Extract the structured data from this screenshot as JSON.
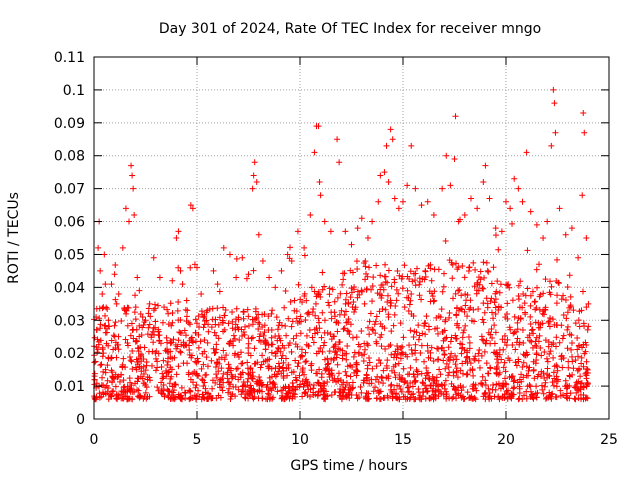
{
  "chart_data": {
    "type": "scatter",
    "title": "Day 301 of 2024, Rate Of TEC Index for receiver mngo",
    "xlabel": "GPS time / hours",
    "ylabel": "ROTI / TECUs",
    "xlim": [
      0,
      25
    ],
    "ylim": [
      0,
      0.11
    ],
    "xticks": [
      0,
      5,
      10,
      15,
      20,
      25
    ],
    "xtick_labels": [
      "0",
      "5",
      "10",
      "15",
      "20",
      "25"
    ],
    "yticks": [
      0,
      0.01,
      0.02,
      0.03,
      0.04,
      0.05,
      0.06,
      0.07,
      0.08,
      0.09,
      0.1,
      0.11
    ],
    "ytick_labels": [
      "0",
      "0.01",
      "0.02",
      "0.03",
      "0.04",
      "0.05",
      "0.06",
      "0.07",
      "0.08",
      "0.09",
      "0.1",
      "0.11"
    ],
    "grid": true,
    "marker": "+",
    "series_color": "#ff0000",
    "series": [
      {
        "name": "ROTI",
        "points": [
          [
            0.1,
            0.031
          ],
          [
            0.2,
            0.052
          ],
          [
            0.25,
            0.06
          ],
          [
            0.3,
            0.045
          ],
          [
            0.4,
            0.038
          ],
          [
            0.5,
            0.05
          ],
          [
            0.55,
            0.041
          ],
          [
            0.7,
            0.03
          ],
          [
            0.85,
            0.041
          ],
          [
            1.0,
            0.044
          ],
          [
            1.1,
            0.035
          ],
          [
            1.2,
            0.038
          ],
          [
            1.4,
            0.052
          ],
          [
            1.5,
            0.033
          ],
          [
            1.55,
            0.064
          ],
          [
            1.7,
            0.06
          ],
          [
            1.8,
            0.077
          ],
          [
            1.85,
            0.074
          ],
          [
            1.9,
            0.07
          ],
          [
            1.95,
            0.062
          ],
          [
            2.1,
            0.043
          ],
          [
            2.2,
            0.039
          ],
          [
            2.5,
            0.03
          ],
          [
            2.7,
            0.035
          ],
          [
            2.9,
            0.049
          ],
          [
            3.2,
            0.043
          ],
          [
            3.4,
            0.034
          ],
          [
            3.6,
            0.032
          ],
          [
            3.8,
            0.042
          ],
          [
            4.0,
            0.055
          ],
          [
            4.1,
            0.057
          ],
          [
            4.2,
            0.045
          ],
          [
            4.3,
            0.041
          ],
          [
            4.5,
            0.036
          ],
          [
            4.7,
            0.065
          ],
          [
            4.8,
            0.064
          ],
          [
            4.9,
            0.047
          ],
          [
            5.0,
            0.046
          ],
          [
            5.2,
            0.038
          ],
          [
            5.5,
            0.033
          ],
          [
            5.8,
            0.045
          ],
          [
            6.0,
            0.041
          ],
          [
            6.3,
            0.052
          ],
          [
            6.6,
            0.05
          ],
          [
            6.9,
            0.043
          ],
          [
            7.2,
            0.049
          ],
          [
            7.5,
            0.044
          ],
          [
            7.7,
            0.07
          ],
          [
            7.75,
            0.074
          ],
          [
            7.8,
            0.078
          ],
          [
            7.9,
            0.072
          ],
          [
            8.0,
            0.056
          ],
          [
            8.2,
            0.048
          ],
          [
            8.5,
            0.043
          ],
          [
            8.8,
            0.04
          ],
          [
            9.1,
            0.045
          ],
          [
            9.4,
            0.05
          ],
          [
            9.6,
            0.048
          ],
          [
            9.9,
            0.057
          ],
          [
            10.2,
            0.052
          ],
          [
            10.5,
            0.062
          ],
          [
            10.7,
            0.081
          ],
          [
            10.8,
            0.089
          ],
          [
            10.9,
            0.089
          ],
          [
            10.95,
            0.072
          ],
          [
            11.0,
            0.068
          ],
          [
            11.2,
            0.06
          ],
          [
            11.5,
            0.057
          ],
          [
            11.8,
            0.085
          ],
          [
            11.9,
            0.078
          ],
          [
            12.2,
            0.057
          ],
          [
            12.5,
            0.053
          ],
          [
            12.8,
            0.058
          ],
          [
            13.0,
            0.061
          ],
          [
            13.3,
            0.055
          ],
          [
            13.5,
            0.06
          ],
          [
            13.8,
            0.066
          ],
          [
            13.9,
            0.074
          ],
          [
            14.1,
            0.075
          ],
          [
            14.2,
            0.083
          ],
          [
            14.3,
            0.072
          ],
          [
            14.4,
            0.088
          ],
          [
            14.5,
            0.085
          ],
          [
            14.6,
            0.067
          ],
          [
            14.8,
            0.064
          ],
          [
            15.0,
            0.066
          ],
          [
            15.2,
            0.071
          ],
          [
            15.4,
            0.083
          ],
          [
            15.6,
            0.07
          ],
          [
            15.9,
            0.065
          ],
          [
            16.2,
            0.066
          ],
          [
            16.5,
            0.062
          ],
          [
            16.9,
            0.07
          ],
          [
            17.1,
            0.08
          ],
          [
            17.3,
            0.071
          ],
          [
            17.5,
            0.079
          ],
          [
            17.55,
            0.092
          ],
          [
            17.7,
            0.06
          ],
          [
            18.0,
            0.062
          ],
          [
            18.3,
            0.067
          ],
          [
            18.6,
            0.064
          ],
          [
            18.9,
            0.072
          ],
          [
            19.0,
            0.077
          ],
          [
            19.2,
            0.067
          ],
          [
            19.5,
            0.058
          ],
          [
            19.8,
            0.057
          ],
          [
            20.0,
            0.066
          ],
          [
            20.2,
            0.064
          ],
          [
            20.4,
            0.073
          ],
          [
            20.6,
            0.07
          ],
          [
            20.8,
            0.066
          ],
          [
            21.0,
            0.081
          ],
          [
            21.2,
            0.063
          ],
          [
            21.5,
            0.059
          ],
          [
            21.8,
            0.055
          ],
          [
            22.0,
            0.06
          ],
          [
            22.2,
            0.083
          ],
          [
            22.3,
            0.1
          ],
          [
            22.35,
            0.096
          ],
          [
            22.4,
            0.087
          ],
          [
            22.6,
            0.064
          ],
          [
            22.9,
            0.056
          ],
          [
            23.2,
            0.058
          ],
          [
            23.5,
            0.049
          ],
          [
            23.7,
            0.068
          ],
          [
            23.75,
            0.093
          ],
          [
            23.8,
            0.087
          ],
          [
            23.9,
            0.055
          ],
          [
            24.0,
            0.035
          ]
        ]
      }
    ]
  }
}
